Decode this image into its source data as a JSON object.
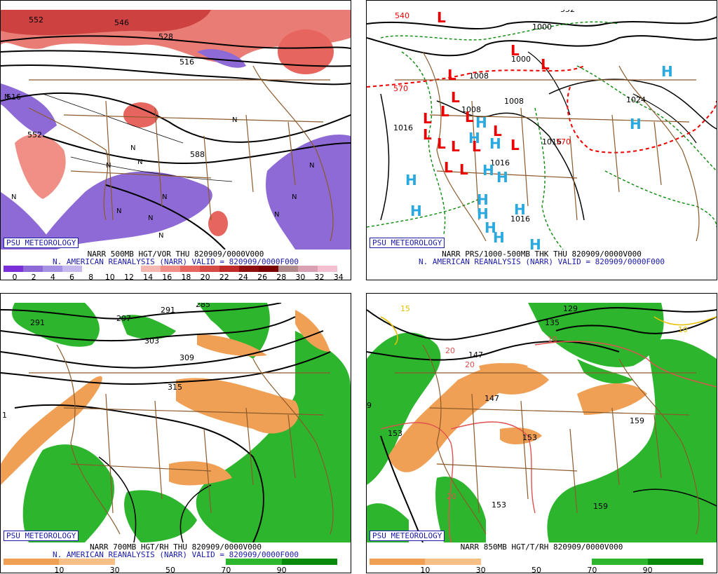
{
  "badge": "PSU METEOROLOGY",
  "subcaption": "N. AMERICAN REANALYSIS (NARR) VALID = 820909/0000F000",
  "panels": [
    {
      "title": "NARR 500MB HGT/VOR THU 820909/0000V000",
      "contour_labels": [
        "552",
        "546",
        "516",
        "528",
        "588",
        "552",
        "516"
      ],
      "n_marks": [
        "N",
        "N",
        "N",
        "N",
        "N",
        "N",
        "N",
        "N",
        "N",
        "N",
        "N",
        "N",
        "N"
      ],
      "legend": {
        "colors": [
          "#7b2fd9",
          "#8e6ad6",
          "#a592e3",
          "#c4b8ef",
          "#ffffff",
          "#ffffff",
          "#ffffff",
          "#f5b7b0",
          "#ef8f86",
          "#e6655e",
          "#d64a45",
          "#c02a29",
          "#8f0e0e",
          "#7a0000",
          "#b08a8a",
          "#d8a0b0",
          "#f4c0d0"
        ],
        "ticks": [
          "0",
          "2",
          "4",
          "6",
          "8",
          "10",
          "12",
          "14",
          "16",
          "18",
          "20",
          "22",
          "24",
          "26",
          "28",
          "30",
          "32",
          "34"
        ]
      }
    },
    {
      "title": "NARR PRS/1000-500MB THK THU 820909/0000V000",
      "contour_labels": [
        "540",
        "1000",
        "1000",
        "1008",
        "1008",
        "1016",
        "1016",
        "1024",
        "1016",
        "1016",
        "570",
        "570",
        "552",
        "1008"
      ],
      "low_marks": [
        "L",
        "L",
        "L",
        "L",
        "L",
        "L",
        "L",
        "L",
        "L",
        "L",
        "L",
        "L",
        "L",
        "L",
        "L",
        "L"
      ],
      "high_marks": [
        "H",
        "H",
        "H",
        "H",
        "H",
        "H",
        "H",
        "H",
        "H",
        "H",
        "H",
        "H",
        "H",
        "H",
        "H"
      ]
    },
    {
      "title": "NARR 700MB HGT/RH THU 820909/0000V000",
      "contour_labels": [
        "291",
        "297",
        "291",
        "303",
        "285",
        "309",
        "315",
        "1"
      ],
      "legend": {
        "colors": [
          "#f0a055",
          "#f7bf85",
          "#ffffff",
          "#ffffff",
          "#2db52d",
          "#0a8a0a"
        ],
        "ticks": [
          "10",
          "30",
          "50",
          "70",
          "90"
        ]
      }
    },
    {
      "title": "NARR 850MB HGT/T/RH 820909/0000V000",
      "contour_labels": [
        "129",
        "135",
        "147",
        "147",
        "153",
        "153",
        "153",
        "159",
        "159",
        "9",
        "15",
        "10",
        "10",
        "20",
        "20",
        "20"
      ],
      "legend": {
        "colors": [
          "#f0a055",
          "#f7bf85",
          "#ffffff",
          "#ffffff",
          "#2db52d",
          "#0a8a0a"
        ],
        "ticks": [
          "10",
          "30",
          "50",
          "70",
          "90"
        ]
      }
    }
  ]
}
